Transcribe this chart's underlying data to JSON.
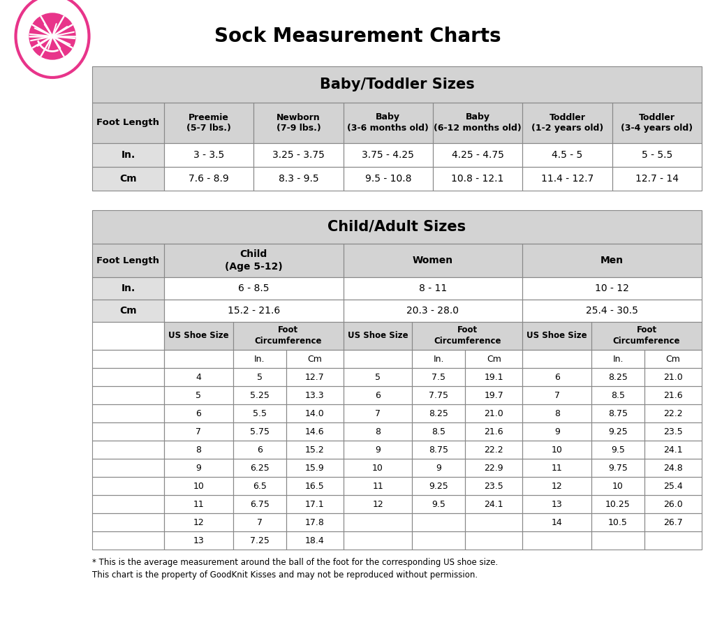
{
  "title": "Sock Measurement Charts",
  "bg_color": "#ffffff",
  "table_bg": "#d3d3d3",
  "row_white": "#ffffff",
  "row_gray": "#e0e0e0",
  "border_color": "#888888",
  "text_color": "#000000",
  "pink_color": "#e8348a",
  "baby_header": "Baby/Toddler Sizes",
  "baby_col_headers": [
    "Preemie\n(5-7 lbs.)",
    "Newborn\n(7-9 lbs.)",
    "Baby\n(3-6 months old)",
    "Baby\n(6-12 months old)",
    "Toddler\n(1-2 years old)",
    "Toddler\n(3-4 years old)"
  ],
  "baby_rows": [
    [
      "In.",
      "3 - 3.5",
      "3.25 - 3.75",
      "3.75 - 4.25",
      "4.25 - 4.75",
      "4.5 - 5",
      "5 - 5.5"
    ],
    [
      "Cm",
      "7.6 - 8.9",
      "8.3 - 9.5",
      "9.5 - 10.8",
      "10.8 - 12.1",
      "11.4 - 12.7",
      "12.7 - 14"
    ]
  ],
  "adult_header": "Child/Adult Sizes",
  "group_labels": [
    "Child\n(Age 5-12)",
    "Women",
    "Men"
  ],
  "foot_in": [
    "6 - 8.5",
    "8 - 11",
    "10 - 12"
  ],
  "foot_cm": [
    "15.2 - 21.6",
    "20.3 - 28.0",
    "25.4 - 30.5"
  ],
  "child_data": [
    [
      "4",
      "5",
      "12.7"
    ],
    [
      "5",
      "5.25",
      "13.3"
    ],
    [
      "6",
      "5.5",
      "14.0"
    ],
    [
      "7",
      "5.75",
      "14.6"
    ],
    [
      "8",
      "6",
      "15.2"
    ],
    [
      "9",
      "6.25",
      "15.9"
    ],
    [
      "10",
      "6.5",
      "16.5"
    ],
    [
      "11",
      "6.75",
      "17.1"
    ],
    [
      "12",
      "7",
      "17.8"
    ],
    [
      "13",
      "7.25",
      "18.4"
    ]
  ],
  "women_data": [
    [
      "5",
      "7.5",
      "19.1"
    ],
    [
      "6",
      "7.75",
      "19.7"
    ],
    [
      "7",
      "8.25",
      "21.0"
    ],
    [
      "8",
      "8.5",
      "21.6"
    ],
    [
      "9",
      "8.75",
      "22.2"
    ],
    [
      "10",
      "9",
      "22.9"
    ],
    [
      "11",
      "9.25",
      "23.5"
    ],
    [
      "12",
      "9.5",
      "24.1"
    ],
    [
      "",
      "",
      ""
    ],
    [
      "",
      "",
      ""
    ]
  ],
  "men_data": [
    [
      "6",
      "8.25",
      "21.0"
    ],
    [
      "7",
      "8.5",
      "21.6"
    ],
    [
      "8",
      "8.75",
      "22.2"
    ],
    [
      "9",
      "9.25",
      "23.5"
    ],
    [
      "10",
      "9.5",
      "24.1"
    ],
    [
      "11",
      "9.75",
      "24.8"
    ],
    [
      "12",
      "10",
      "25.4"
    ],
    [
      "13",
      "10.25",
      "26.0"
    ],
    [
      "14",
      "10.5",
      "26.7"
    ],
    [
      "",
      "",
      ""
    ]
  ],
  "footnote1": "* This is the average measurement around the ball of the foot for the corresponding US shoe size.",
  "footnote2": "This chart is the property of GoodKnit Kisses and may not be reproduced without permission."
}
